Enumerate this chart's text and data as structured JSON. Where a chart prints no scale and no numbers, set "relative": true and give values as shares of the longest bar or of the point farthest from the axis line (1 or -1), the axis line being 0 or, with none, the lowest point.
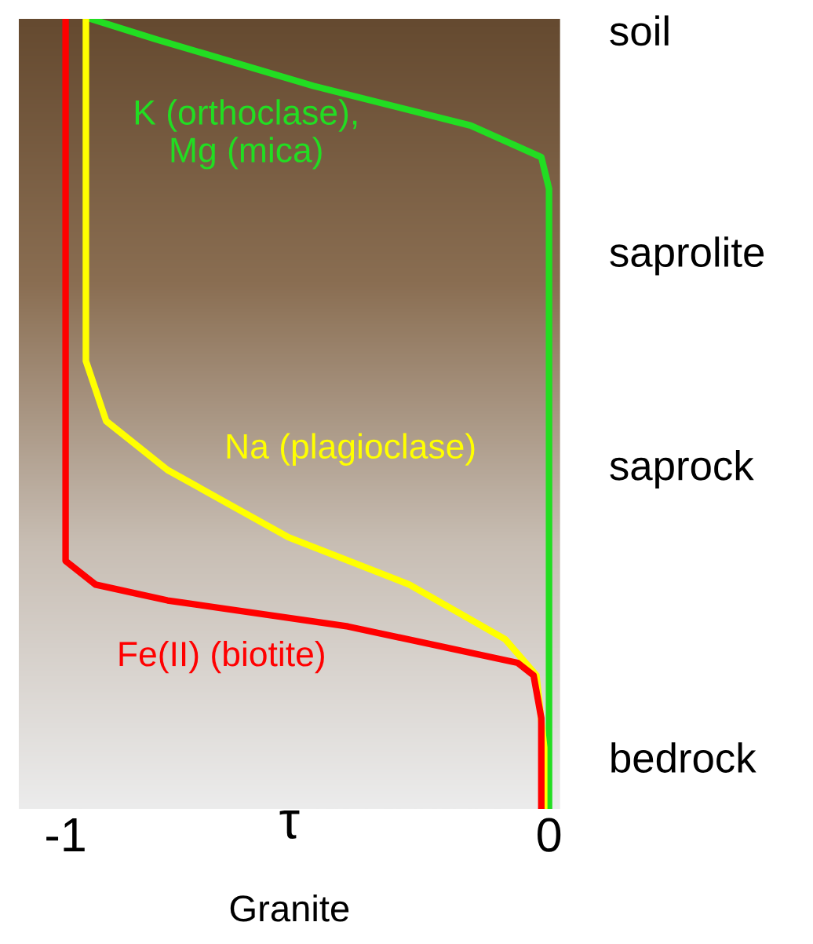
{
  "chart_data": {
    "type": "line",
    "relative": true,
    "xlabel": "τ",
    "xlim": [
      -1.097,
      0.023
    ],
    "xticks": [
      {
        "value": -1,
        "label": "-1"
      },
      0
    ],
    "tick_labels": "x",
    "grid": false,
    "legend": false,
    "marker": "none",
    "line_style": "solid",
    "annotations": [
      "soil",
      "saprolite",
      "saprock",
      "bedrock",
      "Granite"
    ],
    "series": [
      {
        "name": "K (orthoclase),\nMg (mica)",
        "color": "#22dd22",
        "x": [
          -0.948,
          -0.812,
          -0.487,
          -0.162,
          -0.016,
          0,
          0
        ],
        "values": [
          1,
          0.974,
          0.915,
          0.865,
          0.825,
          0.785,
          0
        ]
      },
      {
        "name": "Na (plagioclase)",
        "color": "#ffff00",
        "x": [
          -0.958,
          -0.958,
          -0.916,
          -0.789,
          -0.539,
          -0.289,
          -0.091,
          -0.026,
          -0.01,
          -0.01
        ],
        "values": [
          1,
          0.567,
          0.491,
          0.429,
          0.344,
          0.284,
          0.215,
          0.169,
          0.078,
          0
        ]
      },
      {
        "name": "Fe(II) (biotite)",
        "color": "#ff0000",
        "x": [
          -1,
          -1,
          -0.938,
          -0.789,
          -0.416,
          -0.065,
          -0.032,
          -0.016,
          -0.016
        ],
        "values": [
          1,
          0.314,
          0.284,
          0.264,
          0.231,
          0.185,
          0.169,
          0.115,
          0
        ]
      }
    ]
  }
}
